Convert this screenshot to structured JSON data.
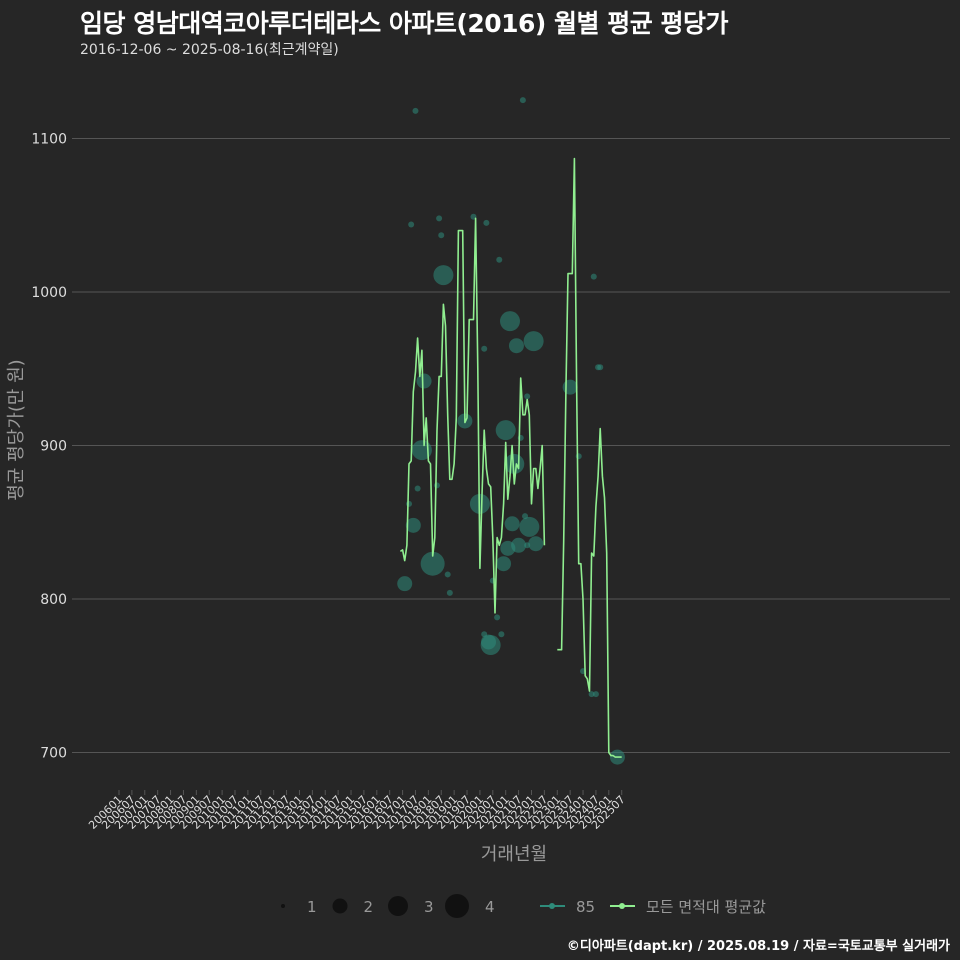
{
  "header": {
    "title": "임당 영남대역코아루더테라스 아파트(2016) 월별 평균 평당가",
    "subtitle": "2016-12-06 ~ 2025-08-16(최근계약일)"
  },
  "caption": "©디아파트(dapt.kr) / 2025.08.19 / 자료=국토교통부 실거래가",
  "colors": {
    "background": "#262626",
    "grid": "#555555",
    "line": "#90ee90",
    "point": "#2e8b7a",
    "text": "#dddddd",
    "axis_title": "#999999"
  },
  "chart_data": {
    "type": "line",
    "title": "임당 영남대역코아루더테라스 아파트(2016) 월별 평균 평당가",
    "xlabel": "거래년월",
    "ylabel": "평균 평당가(만 원)",
    "ylim": [
      670,
      1130
    ],
    "yticks": [
      700,
      800,
      900,
      1000,
      1100
    ],
    "grid": true,
    "legend_position": "bottom",
    "x_tick_labels": [
      "200601",
      "200607",
      "200701",
      "200707",
      "200801",
      "200807",
      "200901",
      "200907",
      "201001",
      "201007",
      "201101",
      "201107",
      "201201",
      "201207",
      "201301",
      "201307",
      "201401",
      "201407",
      "201501",
      "201507",
      "201601",
      "201607",
      "201701",
      "201707",
      "201801",
      "201807",
      "201901",
      "201907",
      "202001",
      "202007",
      "202101",
      "202107",
      "202201",
      "202207",
      "202301",
      "202307",
      "202401",
      "202407",
      "202501",
      "202507"
    ],
    "legend": {
      "size_labels": [
        "1",
        "2",
        "3",
        "4"
      ],
      "series_labels": [
        "85",
        "모든 면적대 평균값"
      ]
    },
    "series": [
      {
        "name": "모든 면적대 평균값",
        "points": [
          [
            "2016-12",
            831
          ],
          [
            "2017-01",
            832
          ],
          [
            "2017-02",
            825
          ],
          [
            "2017-03",
            835
          ],
          [
            "2017-04",
            888
          ],
          [
            "2017-05",
            890
          ],
          [
            "2017-06",
            935
          ],
          [
            "2017-07",
            948
          ],
          [
            "2017-08",
            970
          ],
          [
            "2017-09",
            945
          ],
          [
            "2017-10",
            962
          ],
          [
            "2017-11",
            900
          ],
          [
            "2017-12",
            918
          ],
          [
            "2018-01",
            890
          ],
          [
            "2018-02",
            888
          ],
          [
            "2018-03",
            828
          ],
          [
            "2018-04",
            840
          ],
          [
            "2018-05",
            910
          ],
          [
            "2018-06",
            945
          ],
          [
            "2018-07",
            945
          ],
          [
            "2018-08",
            992
          ],
          [
            "2018-09",
            978
          ],
          [
            "2018-10",
            920
          ],
          [
            "2018-11",
            878
          ],
          [
            "2018-12",
            878
          ],
          [
            "2019-01",
            888
          ],
          [
            "2019-02",
            918
          ],
          [
            "2019-03",
            1040
          ],
          [
            "2019-04",
            1040
          ],
          [
            "2019-05",
            1040
          ],
          [
            "2019-06",
            915
          ],
          [
            "2019-07",
            918
          ],
          [
            "2019-08",
            982
          ],
          [
            "2019-09",
            982
          ],
          [
            "2019-10",
            982
          ],
          [
            "2019-11",
            1048
          ],
          [
            "2019-12",
            950
          ],
          [
            "2020-01",
            820
          ],
          [
            "2020-02",
            870
          ],
          [
            "2020-03",
            910
          ],
          [
            "2020-04",
            885
          ],
          [
            "2020-05",
            875
          ],
          [
            "2020-06",
            873
          ],
          [
            "2020-07",
            840
          ],
          [
            "2020-08",
            791
          ],
          [
            "2020-09",
            840
          ],
          [
            "2020-10",
            835
          ],
          [
            "2020-11",
            840
          ],
          [
            "2020-12",
            862
          ],
          [
            "2021-01",
            902
          ],
          [
            "2021-02",
            865
          ],
          [
            "2021-03",
            880
          ],
          [
            "2021-04",
            900
          ],
          [
            "2021-05",
            875
          ],
          [
            "2021-06",
            888
          ],
          [
            "2021-07",
            885
          ],
          [
            "2021-08",
            944
          ],
          [
            "2021-09",
            920
          ],
          [
            "2021-10",
            920
          ],
          [
            "2021-11",
            930
          ],
          [
            "2021-12",
            920
          ],
          [
            "2022-01",
            862
          ],
          [
            "2022-02",
            885
          ],
          [
            "2022-03",
            885
          ],
          [
            "2022-04",
            872
          ],
          [
            "2022-05",
            885
          ],
          [
            "2022-06",
            900
          ],
          [
            "2022-07",
            835
          ]
        ]
      },
      {
        "name": "모든 면적대 평균값",
        "points": [
          [
            "2023-01",
            767
          ],
          [
            "2023-02",
            767
          ],
          [
            "2023-03",
            767
          ],
          [
            "2023-04",
            838
          ],
          [
            "2023-05",
            935
          ],
          [
            "2023-06",
            1012
          ],
          [
            "2023-07",
            1012
          ],
          [
            "2023-08",
            1012
          ],
          [
            "2023-09",
            1087
          ],
          [
            "2023-10",
            940
          ],
          [
            "2023-11",
            823
          ],
          [
            "2023-12",
            823
          ],
          [
            "2024-01",
            800
          ],
          [
            "2024-02",
            750
          ],
          [
            "2024-03",
            748
          ],
          [
            "2024-04",
            740
          ],
          [
            "2024-05",
            830
          ],
          [
            "2024-06",
            828
          ],
          [
            "2024-07",
            860
          ],
          [
            "2024-08",
            880
          ],
          [
            "2024-09",
            911
          ],
          [
            "2024-10",
            880
          ],
          [
            "2024-11",
            866
          ],
          [
            "2024-12",
            830
          ],
          [
            "2025-01",
            700
          ],
          [
            "2025-02",
            698
          ],
          [
            "2025-03",
            698
          ],
          [
            "2025-04",
            697
          ],
          [
            "2025-05",
            697
          ],
          [
            "2025-06",
            697
          ],
          [
            "2025-07",
            697
          ]
        ]
      }
    ],
    "scatter": {
      "name": "85",
      "points": [
        [
          "2017-02",
          810,
          2
        ],
        [
          "2017-04",
          862,
          1
        ],
        [
          "2017-05",
          1044,
          1
        ],
        [
          "2017-06",
          848,
          2
        ],
        [
          "2017-07",
          1118,
          1
        ],
        [
          "2017-08",
          872,
          1
        ],
        [
          "2017-10",
          897,
          3
        ],
        [
          "2017-11",
          942,
          2
        ],
        [
          "2018-03",
          823,
          4
        ],
        [
          "2018-05",
          874,
          1
        ],
        [
          "2018-06",
          1048,
          1
        ],
        [
          "2018-07",
          1037,
          1
        ],
        [
          "2018-08",
          1011,
          3
        ],
        [
          "2018-10",
          816,
          1
        ],
        [
          "2018-11",
          804,
          1
        ],
        [
          "2019-06",
          916,
          2
        ],
        [
          "2019-10",
          1049,
          1
        ],
        [
          "2020-01",
          862,
          3
        ],
        [
          "2020-03",
          963,
          1
        ],
        [
          "2020-04",
          1045,
          1
        ],
        [
          "2020-03",
          777,
          1
        ],
        [
          "2020-05",
          772,
          2
        ],
        [
          "2020-06",
          770,
          3
        ],
        [
          "2020-07",
          812,
          1
        ],
        [
          "2020-09",
          788,
          1
        ],
        [
          "2020-10",
          1021,
          1
        ],
        [
          "2020-11",
          777,
          1
        ],
        [
          "2020-12",
          823,
          2
        ],
        [
          "2021-01",
          910,
          3
        ],
        [
          "2021-03",
          981,
          3
        ],
        [
          "2021-02",
          833,
          2
        ],
        [
          "2021-04",
          849,
          2
        ],
        [
          "2021-05",
          888,
          3
        ],
        [
          "2021-06",
          965,
          2
        ],
        [
          "2021-07",
          835,
          2
        ],
        [
          "2021-08",
          905,
          1
        ],
        [
          "2021-09",
          1125,
          1
        ],
        [
          "2021-10",
          854,
          1
        ],
        [
          "2021-11",
          932,
          1
        ],
        [
          "2021-11",
          835,
          1
        ],
        [
          "2021-12",
          847,
          3
        ],
        [
          "2022-02",
          968,
          3
        ],
        [
          "2022-03",
          836,
          2
        ],
        [
          "2023-07",
          938,
          2
        ],
        [
          "2023-11",
          893,
          1
        ],
        [
          "2024-01",
          753,
          1
        ],
        [
          "2024-05",
          738,
          1
        ],
        [
          "2024-06",
          1010,
          1
        ],
        [
          "2024-07",
          738,
          1
        ],
        [
          "2024-08",
          951,
          1
        ],
        [
          "2024-09",
          951,
          1
        ],
        [
          "2025-05",
          697,
          2
        ]
      ]
    }
  }
}
